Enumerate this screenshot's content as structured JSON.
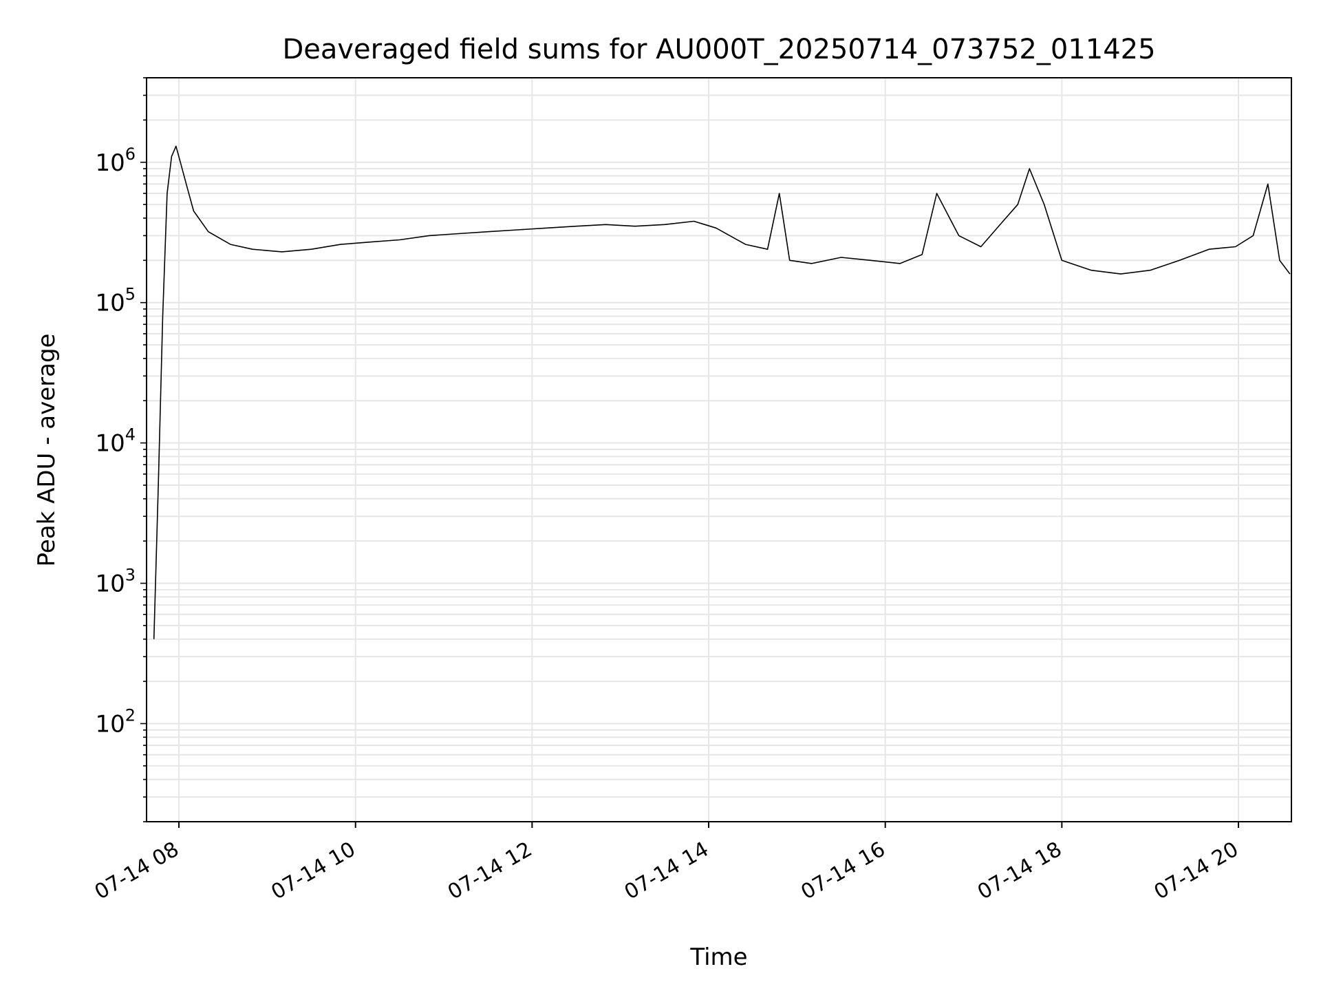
{
  "chart_data": {
    "type": "line",
    "title": "Deaveraged field sums for AU000T_20250714_073752_011425",
    "xlabel": "Time",
    "ylabel": "Peak ADU - average",
    "yscale": "log",
    "ylim": [
      20,
      4000000
    ],
    "xlim": [
      "2025-07-14T07:38:00",
      "2025-07-14T20:36:00"
    ],
    "grid": true,
    "line_color": "#000000",
    "grid_color": "#e6e6e6",
    "x_ticks": [
      {
        "label": "07-14 08",
        "value": "2025-07-14T08:00:00"
      },
      {
        "label": "07-14 10",
        "value": "2025-07-14T10:00:00"
      },
      {
        "label": "07-14 12",
        "value": "2025-07-14T12:00:00"
      },
      {
        "label": "07-14 14",
        "value": "2025-07-14T14:00:00"
      },
      {
        "label": "07-14 16",
        "value": "2025-07-14T16:00:00"
      },
      {
        "label": "07-14 18",
        "value": "2025-07-14T18:00:00"
      },
      {
        "label": "07-14 20",
        "value": "2025-07-14T20:00:00"
      }
    ],
    "y_ticks": [
      {
        "value": 100,
        "mantissa": "10",
        "exp": "2"
      },
      {
        "value": 1000,
        "mantissa": "10",
        "exp": "3"
      },
      {
        "value": 10000,
        "mantissa": "10",
        "exp": "4"
      },
      {
        "value": 100000,
        "mantissa": "10",
        "exp": "5"
      },
      {
        "value": 1000000,
        "mantissa": "10",
        "exp": "6"
      }
    ],
    "series": [
      {
        "x": [
          "2025-07-14T07:43:00",
          "2025-07-14T07:46:00",
          "2025-07-14T07:49:00",
          "2025-07-14T07:52:00",
          "2025-07-14T07:55:00",
          "2025-07-14T07:58:00",
          "2025-07-14T08:01:00",
          "2025-07-14T08:05:00",
          "2025-07-14T08:10:00",
          "2025-07-14T08:20:00",
          "2025-07-14T08:35:00",
          "2025-07-14T08:50:00",
          "2025-07-14T09:10:00",
          "2025-07-14T09:30:00",
          "2025-07-14T09:50:00",
          "2025-07-14T10:10:00",
          "2025-07-14T10:30:00",
          "2025-07-14T10:50:00",
          "2025-07-14T11:10:00",
          "2025-07-14T11:30:00",
          "2025-07-14T11:50:00",
          "2025-07-14T12:10:00",
          "2025-07-14T12:30:00",
          "2025-07-14T12:50:00",
          "2025-07-14T13:10:00",
          "2025-07-14T13:30:00",
          "2025-07-14T13:50:00",
          "2025-07-14T14:05:00",
          "2025-07-14T14:25:00",
          "2025-07-14T14:40:00",
          "2025-07-14T14:48:00",
          "2025-07-14T14:55:00",
          "2025-07-14T15:10:00",
          "2025-07-14T15:30:00",
          "2025-07-14T15:50:00",
          "2025-07-14T16:10:00",
          "2025-07-14T16:25:00",
          "2025-07-14T16:35:00",
          "2025-07-14T16:50:00",
          "2025-07-14T17:05:00",
          "2025-07-14T17:20:00",
          "2025-07-14T17:30:00",
          "2025-07-14T17:38:00",
          "2025-07-14T17:48:00",
          "2025-07-14T18:00:00",
          "2025-07-14T18:20:00",
          "2025-07-14T18:40:00",
          "2025-07-14T19:00:00",
          "2025-07-14T19:20:00",
          "2025-07-14T19:40:00",
          "2025-07-14T19:58:00",
          "2025-07-14T20:10:00",
          "2025-07-14T20:20:00",
          "2025-07-14T20:28:00",
          "2025-07-14T20:35:00"
        ],
        "y": [
          400,
          5000,
          80000,
          600000,
          1100000,
          1300000,
          1000000,
          700000,
          450000,
          320000,
          260000,
          240000,
          230000,
          240000,
          260000,
          270000,
          280000,
          300000,
          310000,
          320000,
          330000,
          340000,
          350000,
          360000,
          350000,
          360000,
          380000,
          340000,
          260000,
          240000,
          600000,
          200000,
          190000,
          210000,
          200000,
          190000,
          220000,
          600000,
          300000,
          250000,
          380000,
          500000,
          900000,
          500000,
          200000,
          170000,
          160000,
          170000,
          200000,
          240000,
          250000,
          300000,
          700000,
          200000,
          160000
        ]
      }
    ]
  }
}
